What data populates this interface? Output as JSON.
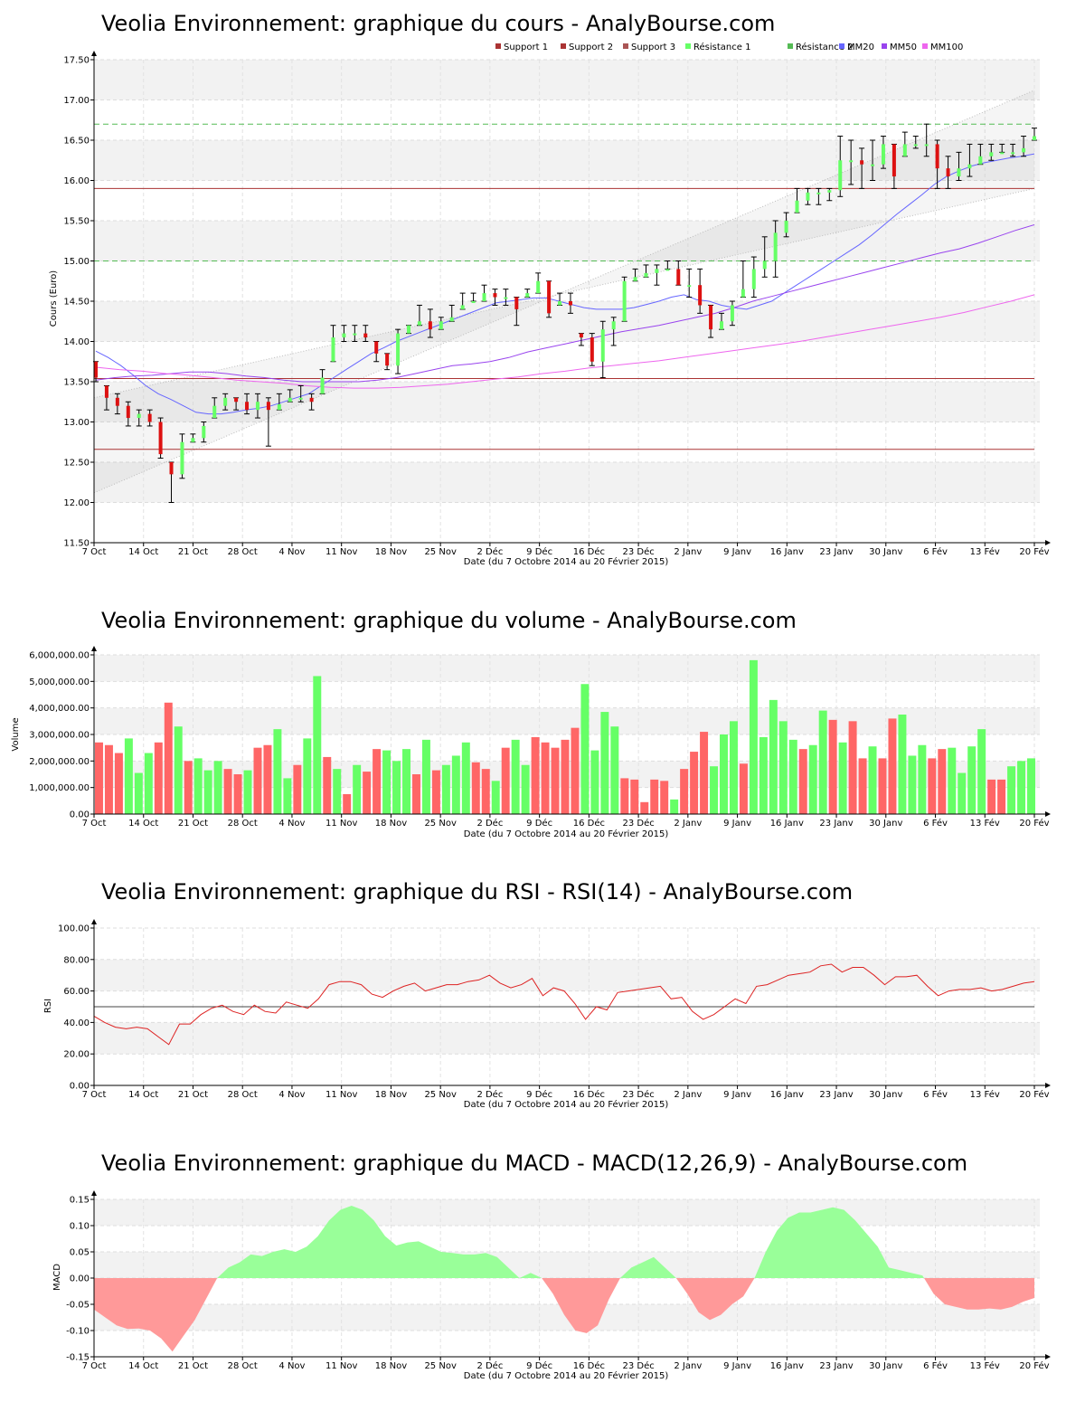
{
  "colors": {
    "up": "#66ff66",
    "down": "#dd1111",
    "vol_up": "#66ff66",
    "vol_down": "#ff6666",
    "mm20": "#6666ff",
    "mm50": "#9944ee",
    "mm100": "#ee66ee",
    "support": "#aa3333",
    "resistance": "#55bb55",
    "rsi": "#dd2222",
    "macd_pos": "#99ff99",
    "macd_neg": "#ff9999"
  },
  "chart_data": [
    {
      "id": "price",
      "type": "candlestick",
      "title": "Veolia Environnement: graphique du cours - AnalyBourse.com",
      "ylabel": "Cours (Euro)",
      "xlabel": "Date (du 7 Octobre 2014 au 20 Février 2015)",
      "ylim": [
        11.5,
        17.5
      ],
      "yticks": [
        "11.50",
        "12.00",
        "12.50",
        "13.00",
        "13.50",
        "14.00",
        "14.50",
        "15.00",
        "15.50",
        "16.00",
        "16.50",
        "17.00",
        "17.50"
      ],
      "xticks": [
        "7 Oct",
        "14 Oct",
        "21 Oct",
        "28 Oct",
        "4 Nov",
        "11 Nov",
        "18 Nov",
        "25 Nov",
        "2 Déc",
        "9 Déc",
        "16 Déc",
        "23 Déc",
        "2 Janv",
        "9 Janv",
        "16 Janv",
        "23 Janv",
        "30 Janv",
        "6 Fév",
        "13 Fév",
        "20 Fév"
      ],
      "legend": [
        "Support 1",
        "Support 2",
        "Support 3",
        "Résistance 1",
        "Résistance 2",
        "MM20",
        "MM50",
        "MM100"
      ],
      "supports": [
        13.54,
        15.9,
        12.66
      ],
      "resistances": [
        15.0,
        16.7
      ],
      "close": [
        13.55,
        13.3,
        13.2,
        13.05,
        13.1,
        13.0,
        12.6,
        12.35,
        12.75,
        12.8,
        12.95,
        13.2,
        13.3,
        13.25,
        13.15,
        13.25,
        13.15,
        13.22,
        13.3,
        13.3,
        13.25,
        13.55,
        14.05,
        14.1,
        14.1,
        14.05,
        13.85,
        13.7,
        14.1,
        14.2,
        14.25,
        14.15,
        14.25,
        14.3,
        14.45,
        14.5,
        14.6,
        14.55,
        14.55,
        14.4,
        14.6,
        14.75,
        14.35,
        14.5,
        14.45,
        14.05,
        13.75,
        14.15,
        14.25,
        14.75,
        14.8,
        14.85,
        14.9,
        14.9,
        14.7,
        14.7,
        14.45,
        14.15,
        14.25,
        14.45,
        14.65,
        14.9,
        15.0,
        15.35,
        15.5,
        15.75,
        15.85,
        15.85,
        15.88,
        16.25,
        16.25,
        16.2,
        16.2,
        16.45,
        16.05,
        16.45,
        16.45,
        16.45,
        16.15,
        16.05,
        16.15,
        16.2,
        16.3,
        16.35,
        16.35,
        16.35,
        16.4,
        16.55
      ],
      "ohlc_range": [
        [
          13.75,
          13.5
        ],
        [
          13.45,
          13.15
        ],
        [
          13.35,
          13.1
        ],
        [
          13.25,
          12.95
        ],
        [
          13.15,
          12.95
        ],
        [
          13.15,
          12.95
        ],
        [
          13.05,
          12.55
        ],
        [
          12.5,
          12.0
        ],
        [
          12.85,
          12.3
        ],
        [
          12.85,
          12.75
        ],
        [
          13.0,
          12.75
        ],
        [
          13.3,
          13.05
        ],
        [
          13.35,
          13.15
        ],
        [
          13.3,
          13.15
        ],
        [
          13.35,
          13.1
        ],
        [
          13.35,
          13.05
        ],
        [
          13.3,
          12.7
        ],
        [
          13.35,
          13.15
        ],
        [
          13.4,
          13.25
        ],
        [
          13.45,
          13.25
        ],
        [
          13.35,
          13.15
        ],
        [
          13.65,
          13.35
        ],
        [
          14.2,
          13.75
        ],
        [
          14.2,
          14.0
        ],
        [
          14.2,
          14.0
        ],
        [
          14.2,
          14.0
        ],
        [
          14.0,
          13.75
        ],
        [
          13.85,
          13.65
        ],
        [
          14.15,
          13.6
        ],
        [
          14.2,
          14.1
        ],
        [
          14.45,
          14.2
        ],
        [
          14.4,
          14.05
        ],
        [
          14.3,
          14.15
        ],
        [
          14.45,
          14.25
        ],
        [
          14.6,
          14.4
        ],
        [
          14.6,
          14.5
        ],
        [
          14.7,
          14.5
        ],
        [
          14.65,
          14.45
        ],
        [
          14.65,
          14.45
        ],
        [
          14.55,
          14.2
        ],
        [
          14.65,
          14.55
        ],
        [
          14.85,
          14.6
        ],
        [
          14.75,
          14.3
        ],
        [
          14.6,
          14.45
        ],
        [
          14.6,
          14.35
        ],
        [
          14.1,
          13.95
        ],
        [
          14.1,
          13.7
        ],
        [
          14.25,
          13.55
        ],
        [
          14.3,
          13.95
        ],
        [
          14.8,
          14.25
        ],
        [
          14.9,
          14.75
        ],
        [
          14.95,
          14.8
        ],
        [
          14.95,
          14.7
        ],
        [
          15.0,
          14.9
        ],
        [
          15.0,
          14.7
        ],
        [
          14.9,
          14.55
        ],
        [
          14.9,
          14.35
        ],
        [
          14.45,
          14.05
        ],
        [
          14.35,
          14.15
        ],
        [
          14.5,
          14.2
        ],
        [
          15.0,
          14.55
        ],
        [
          15.05,
          14.55
        ],
        [
          15.3,
          14.8
        ],
        [
          15.5,
          14.8
        ],
        [
          15.6,
          15.3
        ],
        [
          15.9,
          15.6
        ],
        [
          15.9,
          15.7
        ],
        [
          15.9,
          15.7
        ],
        [
          15.9,
          15.75
        ],
        [
          16.55,
          15.8
        ],
        [
          16.5,
          15.95
        ],
        [
          16.4,
          15.9
        ],
        [
          16.5,
          16.0
        ],
        [
          16.55,
          16.15
        ],
        [
          16.45,
          15.9
        ],
        [
          16.6,
          16.3
        ],
        [
          16.55,
          16.4
        ],
        [
          16.7,
          16.3
        ],
        [
          16.5,
          15.9
        ],
        [
          16.3,
          15.9
        ],
        [
          16.35,
          16.0
        ],
        [
          16.45,
          16.05
        ],
        [
          16.45,
          16.2
        ],
        [
          16.45,
          16.25
        ],
        [
          16.45,
          16.35
        ],
        [
          16.45,
          16.3
        ],
        [
          16.55,
          16.3
        ],
        [
          16.65,
          16.5
        ]
      ],
      "mm20": [
        13.88,
        13.8,
        13.7,
        13.58,
        13.45,
        13.35,
        13.28,
        13.2,
        13.12,
        13.1,
        13.1,
        13.12,
        13.15,
        13.17,
        13.2,
        13.25,
        13.3,
        13.35,
        13.45,
        13.55,
        13.65,
        13.75,
        13.85,
        13.92,
        14.0,
        14.06,
        14.12,
        14.18,
        14.24,
        14.3,
        14.36,
        14.42,
        14.48,
        14.5,
        14.52,
        14.54,
        14.54,
        14.5,
        14.46,
        14.42,
        14.4,
        14.4,
        14.4,
        14.42,
        14.46,
        14.5,
        14.55,
        14.58,
        14.52,
        14.5,
        14.45,
        14.42,
        14.4,
        14.45,
        14.5,
        14.6,
        14.7,
        14.8,
        14.9,
        15.0,
        15.1,
        15.2,
        15.32,
        15.45,
        15.58,
        15.7,
        15.82,
        15.95,
        16.05,
        16.12,
        16.18,
        16.22,
        16.25,
        16.28,
        16.3,
        16.33
      ],
      "mm50": [
        13.52,
        13.55,
        13.57,
        13.58,
        13.6,
        13.62,
        13.62,
        13.6,
        13.57,
        13.55,
        13.52,
        13.5,
        13.5,
        13.5,
        13.5,
        13.52,
        13.55,
        13.6,
        13.65,
        13.7,
        13.72,
        13.75,
        13.8,
        13.87,
        13.92,
        13.97,
        14.02,
        14.07,
        14.12,
        14.16,
        14.2,
        14.25,
        14.3,
        14.35,
        14.42,
        14.5,
        14.56,
        14.62,
        14.68,
        14.74,
        14.8,
        14.86,
        14.92,
        14.98,
        15.04,
        15.1,
        15.15,
        15.22,
        15.3,
        15.38,
        15.45
      ],
      "mm100": [
        13.68,
        13.65,
        13.63,
        13.6,
        13.58,
        13.55,
        13.52,
        13.5,
        13.48,
        13.45,
        13.43,
        13.42,
        13.42,
        13.43,
        13.45,
        13.47,
        13.5,
        13.53,
        13.56,
        13.6,
        13.63,
        13.67,
        13.7,
        13.73,
        13.76,
        13.8,
        13.84,
        13.88,
        13.92,
        13.96,
        14.0,
        14.05,
        14.1,
        14.15,
        14.2,
        14.25,
        14.3,
        14.36,
        14.43,
        14.5,
        14.58
      ]
    },
    {
      "id": "volume",
      "type": "bar",
      "title": "Veolia Environnement: graphique du volume - AnalyBourse.com",
      "ylabel": "Volume",
      "xlabel": "Date (du 7 Octobre 2014 au 20 Février 2015)",
      "ylim": [
        0,
        6000000
      ],
      "yticks": [
        "0.00",
        "1,000,000.00",
        "2,000,000.00",
        "3,000,000.00",
        "4,000,000.00",
        "5,000,000.00",
        "6,000,000.00"
      ],
      "xticks": [
        "7 Oct",
        "14 Oct",
        "21 Oct",
        "28 Oct",
        "4 Nov",
        "11 Nov",
        "18 Nov",
        "25 Nov",
        "2 Déc",
        "9 Déc",
        "16 Déc",
        "23 Déc",
        "2 Janv",
        "9 Janv",
        "16 Janv",
        "23 Janv",
        "30 Janv",
        "6 Fév",
        "13 Fév",
        "20 Fév"
      ],
      "values": [
        2700000,
        2600000,
        2300000,
        2850000,
        1550000,
        2300000,
        2700000,
        4200000,
        3300000,
        2000000,
        2100000,
        1650000,
        2000000,
        1700000,
        1500000,
        1650000,
        2500000,
        2600000,
        3200000,
        1350000,
        1850000,
        2850000,
        5200000,
        2150000,
        1700000,
        750000,
        1850000,
        1600000,
        2450000,
        2400000,
        2000000,
        2450000,
        1500000,
        2800000,
        1650000,
        1850000,
        2200000,
        2700000,
        1950000,
        1700000,
        1250000,
        2500000,
        2800000,
        1850000,
        2900000,
        2700000,
        2500000,
        2800000,
        3250000,
        4900000,
        2400000,
        3850000,
        3300000,
        1350000,
        1300000,
        450000,
        1300000,
        1250000,
        550000,
        1700000,
        2350000,
        3100000,
        1800000,
        3000000,
        3500000,
        1900000,
        5800000,
        2900000,
        4300000,
        3500000,
        2800000,
        2450000,
        2600000,
        3900000,
        3550000,
        2700000,
        3500000,
        2100000,
        2550000,
        2100000,
        3600000,
        3750000,
        2200000,
        2600000,
        2100000,
        2450000,
        2500000,
        1550000,
        2550000,
        3200000,
        1300000,
        1300000,
        1800000,
        2000000,
        2100000
      ],
      "up": [
        0,
        0,
        0,
        1,
        1,
        1,
        0,
        0,
        1,
        0,
        1,
        1,
        1,
        0,
        0,
        1,
        0,
        0,
        1,
        1,
        0,
        1,
        1,
        0,
        1,
        0,
        1,
        0,
        0,
        1,
        1,
        1,
        0,
        1,
        0,
        1,
        1,
        1,
        0,
        0,
        1,
        0,
        1,
        1,
        0,
        0,
        0,
        0,
        0,
        1,
        1,
        1,
        1,
        0,
        0,
        0,
        0,
        0,
        1,
        0,
        0,
        0,
        1,
        1,
        1,
        0,
        1,
        1,
        1,
        1,
        1,
        0,
        1,
        1,
        0,
        1,
        0,
        0,
        1,
        0,
        0,
        1,
        1,
        1,
        0,
        0,
        1,
        1,
        1,
        1,
        0,
        0,
        1,
        1,
        1
      ]
    },
    {
      "id": "rsi",
      "type": "line",
      "title": "Veolia Environnement: graphique du RSI - RSI(14) - AnalyBourse.com",
      "ylabel": "RSI",
      "xlabel": "Date (du 7 Octobre 2014 au 20 Février 2015)",
      "ylim": [
        0,
        100
      ],
      "yticks": [
        "0.00",
        "20.00",
        "40.00",
        "60.00",
        "80.00",
        "100.00"
      ],
      "xticks": [
        "7 Oct",
        "14 Oct",
        "21 Oct",
        "28 Oct",
        "4 Nov",
        "11 Nov",
        "18 Nov",
        "25 Nov",
        "2 Déc",
        "9 Déc",
        "16 Déc",
        "23 Déc",
        "2 Janv",
        "9 Janv",
        "16 Janv",
        "23 Janv",
        "30 Janv",
        "6 Fév",
        "13 Fév",
        "20 Fév"
      ],
      "reference": 50,
      "values": [
        44,
        40,
        37,
        36,
        37,
        36,
        31,
        26,
        39,
        39,
        45,
        49,
        51,
        47,
        45,
        51,
        47,
        46,
        53,
        51,
        49,
        55,
        64,
        66,
        66,
        64,
        58,
        56,
        60,
        63,
        65,
        60,
        62,
        64,
        64,
        66,
        67,
        70,
        65,
        62,
        64,
        68,
        57,
        62,
        60,
        52,
        42,
        50,
        48,
        59,
        60,
        61,
        62,
        63,
        55,
        56,
        47,
        42,
        45,
        50,
        55,
        52,
        63,
        64,
        67,
        70,
        71,
        72,
        76,
        77,
        72,
        75,
        75,
        70,
        64,
        69,
        69,
        70,
        63,
        57,
        60,
        61,
        61,
        62,
        60,
        61,
        63,
        65,
        66
      ]
    },
    {
      "id": "macd",
      "type": "area",
      "title": "Veolia Environnement: graphique du MACD - MACD(12,26,9) - AnalyBourse.com",
      "ylabel": "MACD",
      "xlabel": "Date (du 7 Octobre 2014 au 20 Février 2015)",
      "ylim": [
        -0.15,
        0.15
      ],
      "yticks": [
        "-0.15",
        "-0.10",
        "-0.05",
        "0.00",
        "0.05",
        "0.10",
        "0.15"
      ],
      "xticks": [
        "7 Oct",
        "14 Oct",
        "21 Oct",
        "28 Oct",
        "4 Nov",
        "11 Nov",
        "18 Nov",
        "25 Nov",
        "2 Déc",
        "9 Déc",
        "16 Déc",
        "23 Déc",
        "2 Janv",
        "9 Janv",
        "16 Janv",
        "23 Janv",
        "30 Janv",
        "6 Fév",
        "13 Fév",
        "20 Fév"
      ],
      "values": [
        -0.06,
        -0.075,
        -0.09,
        -0.097,
        -0.096,
        -0.1,
        -0.115,
        -0.14,
        -0.11,
        -0.08,
        -0.04,
        0.0,
        0.02,
        0.03,
        0.045,
        0.042,
        0.05,
        0.055,
        0.05,
        0.06,
        0.08,
        0.11,
        0.13,
        0.138,
        0.13,
        0.11,
        0.08,
        0.062,
        0.068,
        0.07,
        0.06,
        0.05,
        0.048,
        0.045,
        0.045,
        0.048,
        0.04,
        0.02,
        0.0,
        0.01,
        0.0,
        -0.03,
        -0.07,
        -0.1,
        -0.105,
        -0.09,
        -0.04,
        0.0,
        0.02,
        0.03,
        0.04,
        0.02,
        0.0,
        -0.03,
        -0.065,
        -0.08,
        -0.07,
        -0.05,
        -0.035,
        0.0,
        0.05,
        0.09,
        0.115,
        0.125,
        0.125,
        0.13,
        0.135,
        0.13,
        0.11,
        0.085,
        0.06,
        0.02,
        0.015,
        0.01,
        0.005,
        -0.03,
        -0.05,
        -0.055,
        -0.06,
        -0.06,
        -0.058,
        -0.06,
        -0.055,
        -0.045,
        -0.038
      ]
    }
  ]
}
